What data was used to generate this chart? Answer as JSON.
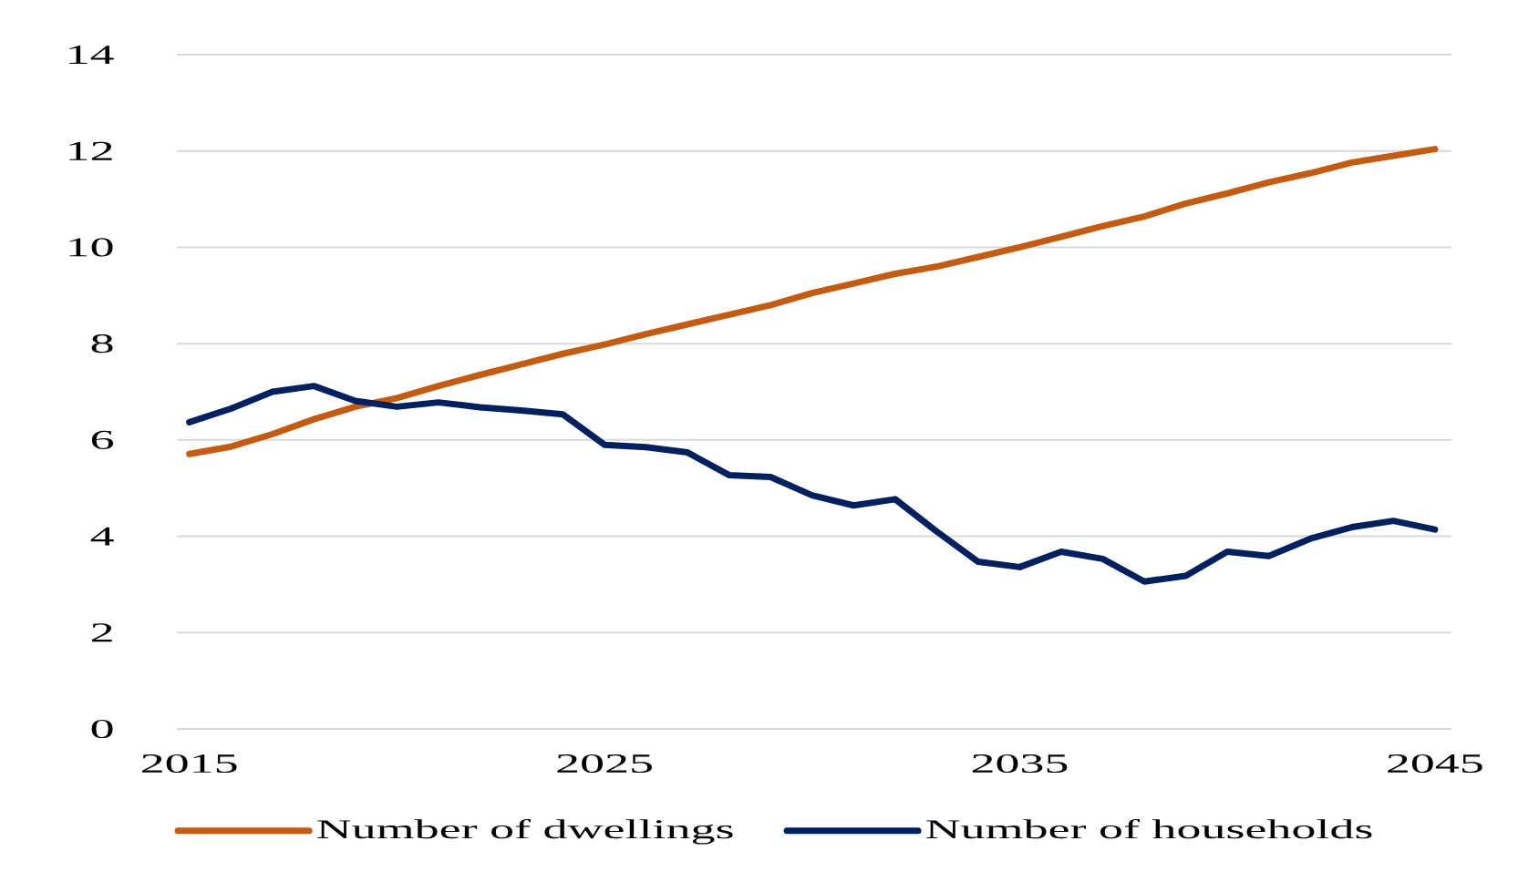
{
  "chart_data": {
    "type": "line",
    "x": [
      2015,
      2016,
      2017,
      2018,
      2019,
      2020,
      2021,
      2022,
      2023,
      2024,
      2025,
      2026,
      2027,
      2028,
      2029,
      2030,
      2031,
      2032,
      2033,
      2034,
      2035,
      2036,
      2037,
      2038,
      2039,
      2040,
      2041,
      2042,
      2043,
      2044,
      2045
    ],
    "series": [
      {
        "name": "Number of dwellings",
        "color": "#c55a11",
        "values": [
          5.71,
          5.86,
          6.12,
          6.43,
          6.69,
          6.87,
          7.12,
          7.35,
          7.57,
          7.79,
          7.98,
          8.2,
          8.4,
          8.6,
          8.8,
          9.05,
          9.25,
          9.45,
          9.6,
          9.8,
          10.0,
          10.22,
          10.44,
          10.64,
          10.91,
          11.12,
          11.35,
          11.54,
          11.76,
          11.9,
          12.04
        ]
      },
      {
        "name": "Number of households",
        "color": "#002060",
        "values": [
          6.37,
          6.65,
          7.0,
          7.12,
          6.81,
          6.69,
          6.78,
          6.68,
          6.61,
          6.53,
          5.9,
          5.85,
          5.74,
          5.27,
          5.23,
          4.85,
          4.64,
          4.77,
          4.1,
          3.47,
          3.36,
          3.68,
          3.53,
          3.06,
          3.18,
          3.68,
          3.59,
          3.95,
          4.19,
          4.32,
          4.14
        ]
      }
    ],
    "xlim": [
      2014.7,
      2045.4
    ],
    "xticks": [
      2015,
      2025,
      2035,
      2045
    ],
    "ylim": [
      0,
      14
    ],
    "yticks": [
      0,
      2,
      4,
      6,
      8,
      10,
      12,
      14
    ],
    "grid": "y",
    "legend": "bottom",
    "line_style": "solid"
  }
}
